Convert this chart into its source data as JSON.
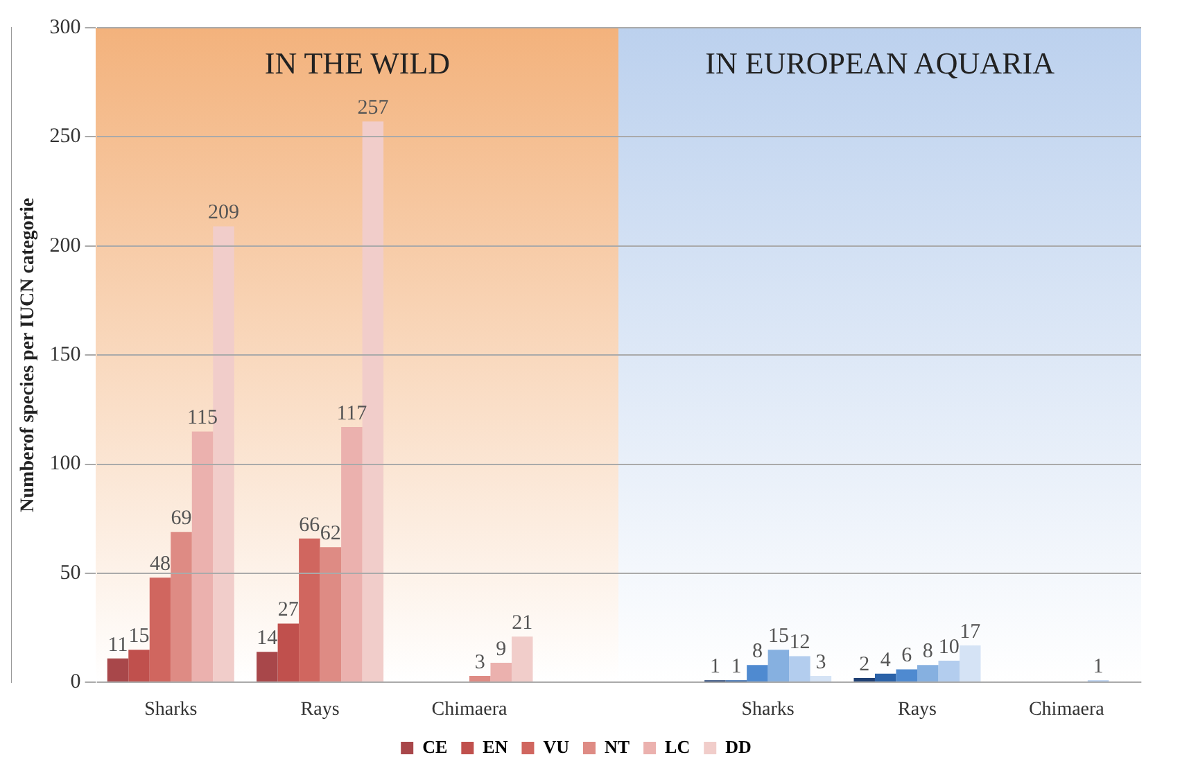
{
  "chart_data": {
    "type": "bar",
    "ylabel": "Numberof species per IUCN categorie",
    "categories": [
      "Sharks",
      "Rays",
      "Chimaera",
      null,
      "Sharks",
      "Rays",
      "Chimaera"
    ],
    "series": [
      {
        "name": "CE",
        "colors": [
          "#a8474a",
          "#a8474a",
          "#a8474a",
          "#a8474a",
          "#1f3f73",
          "#1f3f73",
          "#1f3f73"
        ],
        "values": [
          11,
          14,
          null,
          null,
          1,
          2,
          null
        ]
      },
      {
        "name": "EN",
        "colors": [
          "#c0504d",
          "#c0504d",
          "#c0504d",
          "#c0504d",
          "#2b62a8",
          "#2b62a8",
          "#2b62a8"
        ],
        "values": [
          15,
          27,
          null,
          null,
          1,
          4,
          null
        ]
      },
      {
        "name": "VU",
        "colors": [
          "#d0665f",
          "#d0665f",
          "#d0665f",
          "#d0665f",
          "#4f8ad0",
          "#4f8ad0",
          "#4f8ad0"
        ],
        "values": [
          48,
          66,
          null,
          null,
          8,
          6,
          null
        ]
      },
      {
        "name": "NT",
        "colors": [
          "#de8b84",
          "#de8b84",
          "#de8b84",
          "#de8b84",
          "#86b0e0",
          "#86b0e0",
          "#86b0e0"
        ],
        "values": [
          69,
          62,
          3,
          null,
          15,
          8,
          null
        ]
      },
      {
        "name": "LC",
        "colors": [
          "#ebb1ae",
          "#ebb1ae",
          "#ebb1ae",
          "#ebb1ae",
          "#b3cdee",
          "#b3cdee",
          "#b3cdee"
        ],
        "values": [
          115,
          117,
          9,
          null,
          12,
          10,
          1
        ]
      },
      {
        "name": "DD",
        "colors": [
          "#f1cdca",
          "#f1cdca",
          "#f1cdca",
          "#f1cdca",
          "#d5e3f5",
          "#d5e3f5",
          "#d5e3f5"
        ],
        "values": [
          209,
          257,
          21,
          null,
          3,
          17,
          null
        ]
      }
    ],
    "annotations": [
      "IN THE WILD",
      "IN EUROPEAN AQUARIA"
    ],
    "ylim": [
      0,
      300
    ],
    "yticks": [
      0,
      50,
      100,
      150,
      200,
      250,
      300
    ],
    "grid": "y",
    "legend": "bottom",
    "data_labels": true
  }
}
